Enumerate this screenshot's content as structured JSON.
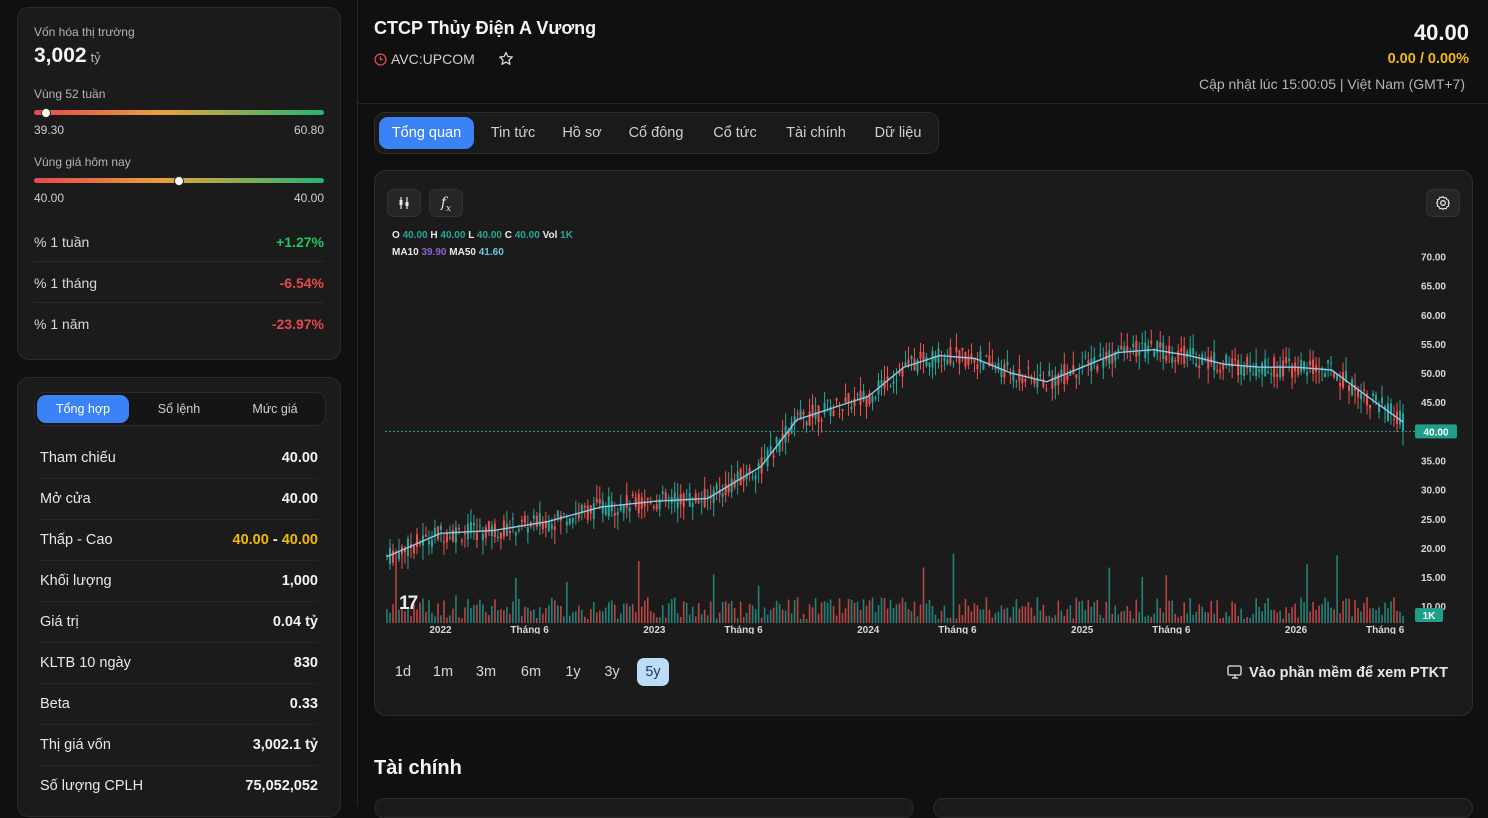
{
  "stats": {
    "market_cap_label": "Vốn hóa thị trường",
    "market_cap_value": "3,002",
    "market_cap_unit": "tỷ",
    "range52_label": "Vùng 52 tuần",
    "range52_low": "39.30",
    "range52_high": "60.80",
    "range52_position": 0.04,
    "today_label": "Vùng giá hôm nay",
    "today_low": "40.00",
    "today_high": "40.00",
    "today_position": 0.5,
    "perf": [
      {
        "label": "% 1 tuần",
        "value": "+1.27%",
        "color": "#21c55d"
      },
      {
        "label": "% 1 tháng",
        "value": "-6.54%",
        "color": "#e5484d"
      },
      {
        "label": "% 1 năm",
        "value": "-23.97%",
        "color": "#e5484d"
      }
    ]
  },
  "summary": {
    "tabs": [
      "Tổng hợp",
      "Sổ lệnh",
      "Mức giá"
    ],
    "rows": [
      {
        "label": "Tham chiếu",
        "value": "40.00",
        "color": "#f0b90b"
      },
      {
        "label": "Mở cửa",
        "value": "40.00",
        "color": "#f0b90b"
      },
      {
        "label": "Thấp - Cao",
        "low": "40.00",
        "sep": "-",
        "high": "40.00",
        "color": "#f0b90b"
      },
      {
        "label": "Khối lượng",
        "value": "1,000"
      },
      {
        "label": "Giá trị",
        "value": "0.04 tỷ"
      },
      {
        "label": "KLTB 10 ngày",
        "value": "830"
      },
      {
        "label": "Beta",
        "value": "0.33"
      },
      {
        "label": "Thị giá vốn",
        "value": "3,002.1 tỷ"
      },
      {
        "label": "Số lượng CPLH",
        "value": "75,052,052"
      }
    ]
  },
  "header": {
    "company": "CTCP Thủy Điện A Vương",
    "ticker": "AVC:UPCOM",
    "price": "40.00",
    "change": "0.00 / 0.00%",
    "updated": "Cập nhật lúc 15:00:05 | Việt Nam (GMT+7)"
  },
  "tabs": [
    "Tổng quan",
    "Tin tức",
    "Hồ sơ",
    "Cổ đông",
    "Cổ tức",
    "Tài chính",
    "Dữ liệu"
  ],
  "ohlc": {
    "o_label": "O",
    "o": "40.00",
    "h_label": "H",
    "h": "40.00",
    "l_label": "L",
    "l": "40.00",
    "c_label": "C",
    "c": "40.00",
    "vol_label": "Vol",
    "vol": "1K",
    "ma10_label": "MA10",
    "ma10": "39.90",
    "ma50_label": "MA50",
    "ma50": "41.60"
  },
  "range_buttons": [
    "1d",
    "1m",
    "3m",
    "6m",
    "1y",
    "3y",
    "5y"
  ],
  "range_active": "5y",
  "ptkt_label": "Vào phần mềm để xem PTKT",
  "section_title": "Tài chính",
  "chart_data": {
    "type": "line",
    "title": "",
    "xlabel": "",
    "ylabel": "",
    "ylim": [
      9,
      73
    ],
    "x_ticks": [
      "2022",
      "Tháng 6",
      "2023",
      "Tháng 6",
      "2024",
      "Tháng 6",
      "2025",
      "Tháng 6",
      "2026",
      "Tháng 6"
    ],
    "y_ticks": [
      "70.00",
      "65.00",
      "60.00",
      "55.00",
      "50.00",
      "45.00",
      "40.00",
      "35.00",
      "30.00",
      "25.00",
      "20.00",
      "15.00",
      "10.00"
    ],
    "last_price_label": "40.00",
    "last_volume_label": "1K",
    "series": [
      {
        "name": "MA50",
        "x": [
          "2021-10",
          "2022-01",
          "2022-04",
          "2022-07",
          "2022-10",
          "2023-01",
          "2023-04",
          "2023-07",
          "2023-09",
          "2023-11",
          "2024-01",
          "2024-03",
          "2024-05",
          "2024-07",
          "2024-09",
          "2024-11",
          "2025-01",
          "2025-03",
          "2025-05",
          "2025-07",
          "2025-09",
          "2025-11",
          "2026-01",
          "2026-03",
          "2026-05",
          "2026-07"
        ],
        "values": [
          18.5,
          22.5,
          23.0,
          24.5,
          27.0,
          28.0,
          28.5,
          34.0,
          42.0,
          44.0,
          46.0,
          51.0,
          53.0,
          52.5,
          50.0,
          48.5,
          51.0,
          53.5,
          54.0,
          53.0,
          51.5,
          51.0,
          51.0,
          50.5,
          46.0,
          41.6
        ]
      }
    ],
    "volume_bars_color": [
      "#26a69a",
      "#ef5350"
    ]
  }
}
